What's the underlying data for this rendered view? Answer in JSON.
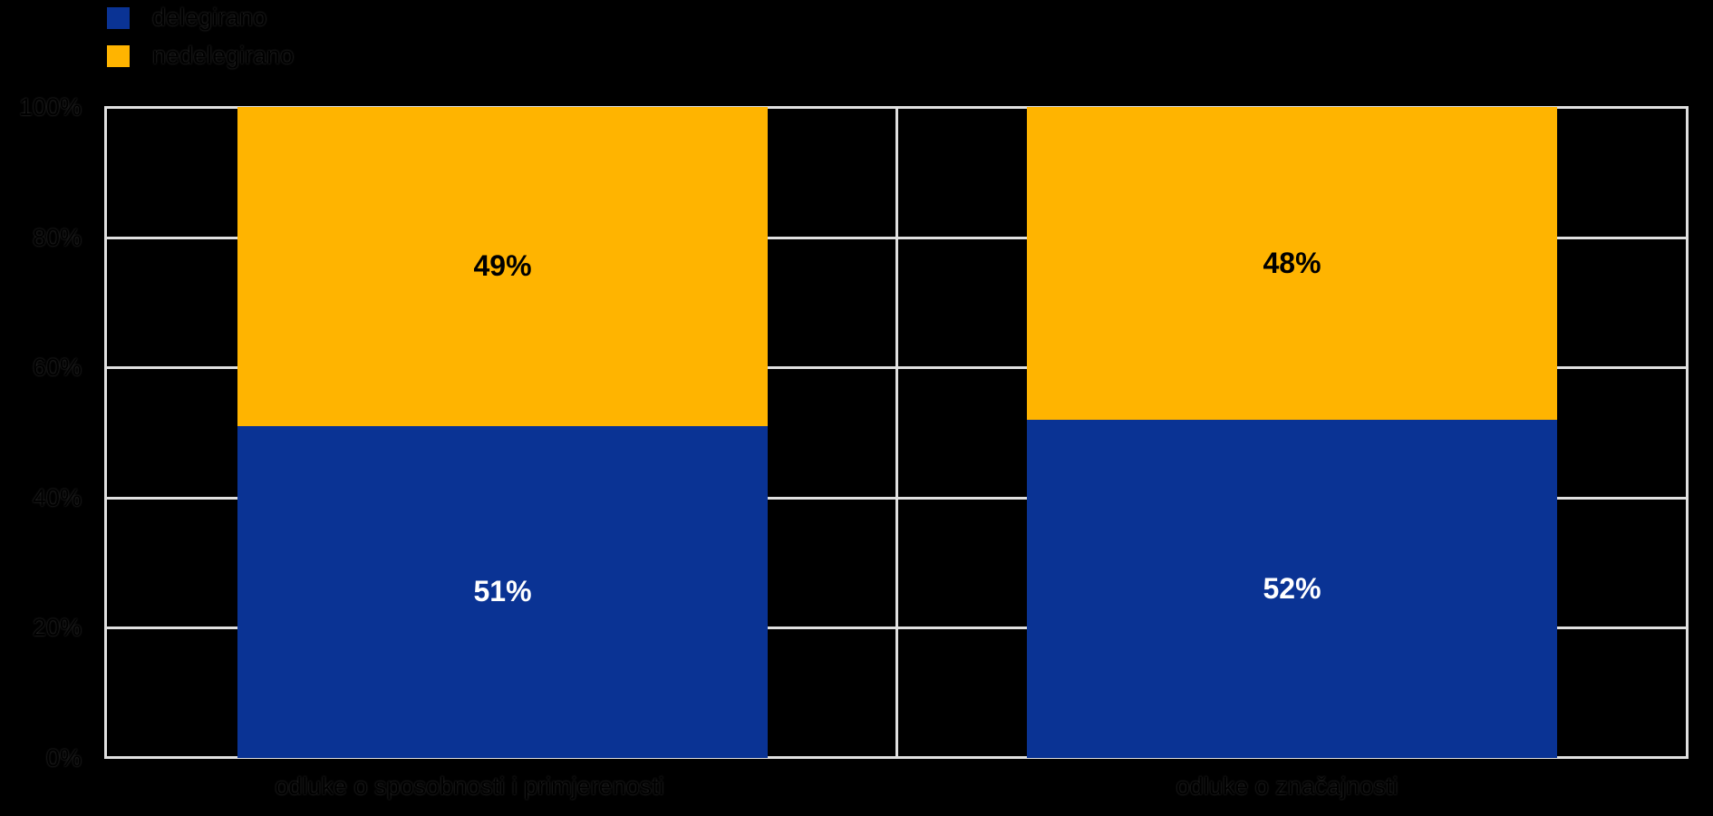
{
  "colors": {
    "background": "#000000",
    "series_blue": "#0a3394",
    "series_orange": "#ffb400",
    "grid": "#e0e0e0",
    "data_label_on_blue": "#ffffff",
    "data_label_on_orange": "#000000"
  },
  "legend": {
    "items": [
      {
        "label": "delegirano",
        "color": "#0a3394"
      },
      {
        "label": "nedelegirano",
        "color": "#ffb400"
      }
    ]
  },
  "y_axis": {
    "ticks": [
      "100%",
      "80%",
      "60%",
      "40%",
      "20%",
      "0%"
    ]
  },
  "x_axis": {
    "categories": [
      "odluke o sposobnosti i primjerenosti",
      "odluke o značajnosti"
    ]
  },
  "bars": [
    {
      "category": "odluke o sposobnosti i primjerenosti",
      "nedelegirano_pct": 49,
      "nedelegirano_label": "49%",
      "delegirano_pct": 51,
      "delegirano_label": "51%"
    },
    {
      "category": "odluke o značajnosti",
      "nedelegirano_pct": 48,
      "nedelegirano_label": "48%",
      "delegirano_pct": 52,
      "delegirano_label": "52%"
    }
  ],
  "chart_data": {
    "type": "bar",
    "stacked": true,
    "unit": "%",
    "title": "",
    "xlabel": "",
    "ylabel": "",
    "categories": [
      "odluke o sposobnosti i primjerenosti",
      "odluke o značajnosti"
    ],
    "series": [
      {
        "name": "delegirano",
        "values": [
          51,
          52
        ],
        "color": "#0a3394"
      },
      {
        "name": "nedelegirano",
        "values": [
          49,
          48
        ],
        "color": "#ffb400"
      }
    ],
    "data_labels": {
      "delegirano": [
        "51%",
        "52%"
      ],
      "nedelegirano": [
        "49%",
        "48%"
      ]
    },
    "ylim": [
      0,
      100
    ],
    "ytick_values": [
      0,
      20,
      40,
      60,
      80,
      100
    ],
    "ytick_labels": [
      "0%",
      "20%",
      "40%",
      "60%",
      "80%",
      "100%"
    ],
    "grid": true,
    "grid_color": "#e0e0e0",
    "background": "#000000",
    "legend_position": "top-left"
  }
}
